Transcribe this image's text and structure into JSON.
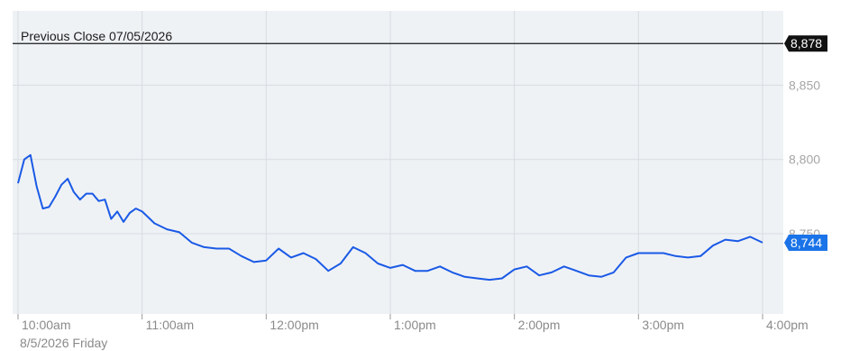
{
  "chart_data": {
    "type": "line",
    "title": "Previous Close 07/05/2026",
    "date_label": "8/5/2026 Friday",
    "x_ticks": [
      "10:00am",
      "11:00am",
      "12:00pm",
      "1:00pm",
      "2:00pm",
      "3:00pm",
      "4:00pm"
    ],
    "y_ticks": [
      "8,850",
      "8,800",
      "8,750"
    ],
    "y_tick_values": [
      8850,
      8800,
      8750
    ],
    "ylim": [
      8696,
      8900
    ],
    "x_range_hours": [
      0,
      6
    ],
    "grid": true,
    "previous_close": {
      "value": 8878,
      "label": "8,878"
    },
    "last_value": {
      "value": 8744,
      "label": "8,744"
    },
    "series": [
      {
        "x": [
          0,
          0.05,
          0.1,
          0.15,
          0.2,
          0.25,
          0.3,
          0.35,
          0.4,
          0.45,
          0.5,
          0.55,
          0.6,
          0.65,
          0.7,
          0.75,
          0.8,
          0.85,
          0.9,
          0.95,
          1.0,
          1.1,
          1.2,
          1.3,
          1.4,
          1.5,
          1.6,
          1.7,
          1.8,
          1.9,
          2.0,
          2.1,
          2.2,
          2.3,
          2.4,
          2.5,
          2.6,
          2.7,
          2.8,
          2.9,
          3.0,
          3.1,
          3.2,
          3.3,
          3.4,
          3.5,
          3.6,
          3.7,
          3.8,
          3.9,
          4.0,
          4.1,
          4.2,
          4.3,
          4.4,
          4.5,
          4.6,
          4.7,
          4.8,
          4.9,
          5.0,
          5.1,
          5.2,
          5.3,
          5.4,
          5.5,
          5.6,
          5.7,
          5.8,
          5.9,
          6.0
        ],
        "values": [
          8784,
          8800,
          8803,
          8782,
          8767,
          8768,
          8775,
          8783,
          8787,
          8778,
          8773,
          8777,
          8777,
          8772,
          8773,
          8760,
          8765,
          8758,
          8764,
          8767,
          8765,
          8757,
          8753,
          8751,
          8744,
          8741,
          8740,
          8740,
          8735,
          8731,
          8732,
          8740,
          8734,
          8737,
          8733,
          8725,
          8730,
          8741,
          8737,
          8730,
          8727,
          8729,
          8725,
          8725,
          8728,
          8724,
          8721,
          8720,
          8719,
          8720,
          8726,
          8728,
          8722,
          8724,
          8728,
          8725,
          8722,
          8721,
          8724,
          8734,
          8737,
          8737,
          8737,
          8735,
          8734,
          8735,
          8742,
          8746,
          8745,
          8748,
          8744
        ]
      }
    ]
  },
  "colors": {
    "line": "#1a5ae6",
    "previous_close_line": "#1a1a1a",
    "previous_close_badge": "#111111",
    "last_badge": "#1a73e8",
    "plot_background": "#eff2f5",
    "grid": "#d7dce1"
  }
}
